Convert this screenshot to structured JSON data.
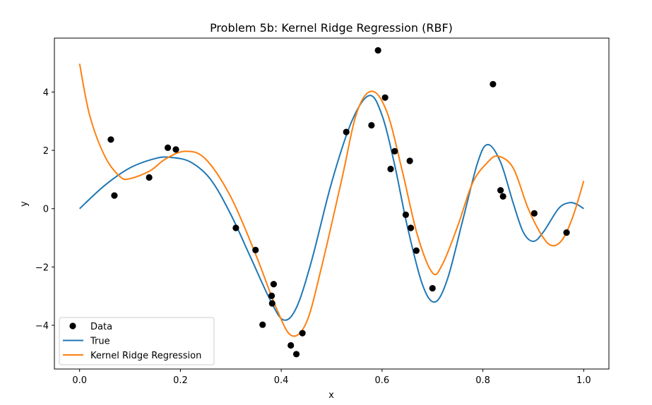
{
  "chart_data": {
    "type": "scatter",
    "title": "Problem 5b: Kernel Ridge Regression (RBF)",
    "xlabel": "x",
    "ylabel": "y",
    "xlim": [
      -0.05,
      1.05
    ],
    "ylim": [
      -5.5,
      5.85
    ],
    "xticks": [
      0.0,
      0.2,
      0.4,
      0.6,
      0.8,
      1.0
    ],
    "xtick_labels": [
      "0.0",
      "0.2",
      "0.4",
      "0.6",
      "0.8",
      "1.0"
    ],
    "yticks": [
      -4,
      -2,
      0,
      2,
      4
    ],
    "ytick_labels": [
      "−4",
      "−2",
      "0",
      "2",
      "4"
    ],
    "grid": false,
    "legend_position": "lower-left",
    "series": [
      {
        "name": "Data",
        "kind": "scatter",
        "color": "#000000",
        "points": [
          [
            0.062,
            2.37
          ],
          [
            0.069,
            0.45
          ],
          [
            0.138,
            1.07
          ],
          [
            0.175,
            2.09
          ],
          [
            0.191,
            2.03
          ],
          [
            0.31,
            -0.66
          ],
          [
            0.349,
            -1.42
          ],
          [
            0.363,
            -3.98
          ],
          [
            0.381,
            -2.99
          ],
          [
            0.382,
            -3.25
          ],
          [
            0.385,
            -2.59
          ],
          [
            0.419,
            -4.69
          ],
          [
            0.43,
            -4.99
          ],
          [
            0.442,
            -4.27
          ],
          [
            0.529,
            2.63
          ],
          [
            0.579,
            2.86
          ],
          [
            0.592,
            5.43
          ],
          [
            0.606,
            3.81
          ],
          [
            0.617,
            1.36
          ],
          [
            0.625,
            1.97
          ],
          [
            0.647,
            -0.21
          ],
          [
            0.655,
            1.64
          ],
          [
            0.657,
            -0.66
          ],
          [
            0.668,
            -1.44
          ],
          [
            0.7,
            -2.73
          ],
          [
            0.82,
            4.27
          ],
          [
            0.835,
            0.63
          ],
          [
            0.84,
            0.42
          ],
          [
            0.902,
            -0.16
          ],
          [
            0.966,
            -0.82
          ]
        ]
      },
      {
        "name": "True",
        "kind": "line",
        "color": "#1f77b4",
        "points": [
          [
            0.0,
            0.0
          ],
          [
            0.05,
            0.8
          ],
          [
            0.1,
            1.4
          ],
          [
            0.15,
            1.72
          ],
          [
            0.18,
            1.76
          ],
          [
            0.22,
            1.6
          ],
          [
            0.26,
            1.0
          ],
          [
            0.3,
            -0.2
          ],
          [
            0.34,
            -1.7
          ],
          [
            0.38,
            -3.2
          ],
          [
            0.405,
            -3.82
          ],
          [
            0.43,
            -3.4
          ],
          [
            0.46,
            -1.8
          ],
          [
            0.5,
            0.9
          ],
          [
            0.54,
            3.0
          ],
          [
            0.575,
            3.88
          ],
          [
            0.6,
            3.2
          ],
          [
            0.625,
            1.5
          ],
          [
            0.65,
            -0.6
          ],
          [
            0.68,
            -2.6
          ],
          [
            0.705,
            -3.2
          ],
          [
            0.73,
            -2.4
          ],
          [
            0.76,
            -0.4
          ],
          [
            0.79,
            1.6
          ],
          [
            0.81,
            2.2
          ],
          [
            0.835,
            1.6
          ],
          [
            0.86,
            0.2
          ],
          [
            0.88,
            -0.8
          ],
          [
            0.9,
            -1.12
          ],
          [
            0.92,
            -0.8
          ],
          [
            0.95,
            0.0
          ],
          [
            0.97,
            0.2
          ],
          [
            0.985,
            0.16
          ],
          [
            1.0,
            0.0
          ]
        ]
      },
      {
        "name": "Kernel Ridge Regression",
        "kind": "line",
        "color": "#ff7f0e",
        "points": [
          [
            0.0,
            4.97
          ],
          [
            0.02,
            3.2
          ],
          [
            0.05,
            1.8
          ],
          [
            0.08,
            1.1
          ],
          [
            0.1,
            1.03
          ],
          [
            0.14,
            1.3
          ],
          [
            0.17,
            1.7
          ],
          [
            0.21,
            1.97
          ],
          [
            0.25,
            1.7
          ],
          [
            0.3,
            0.4
          ],
          [
            0.35,
            -1.6
          ],
          [
            0.39,
            -3.4
          ],
          [
            0.42,
            -4.35
          ],
          [
            0.45,
            -3.9
          ],
          [
            0.48,
            -2.0
          ],
          [
            0.52,
            1.0
          ],
          [
            0.55,
            3.3
          ],
          [
            0.58,
            4.03
          ],
          [
            0.61,
            3.3
          ],
          [
            0.64,
            1.3
          ],
          [
            0.67,
            -0.9
          ],
          [
            0.7,
            -2.2
          ],
          [
            0.72,
            -1.9
          ],
          [
            0.75,
            -0.6
          ],
          [
            0.78,
            0.9
          ],
          [
            0.81,
            1.6
          ],
          [
            0.83,
            1.8
          ],
          [
            0.86,
            1.4
          ],
          [
            0.89,
            0.0
          ],
          [
            0.92,
            -1.0
          ],
          [
            0.94,
            -1.27
          ],
          [
            0.96,
            -1.0
          ],
          [
            0.98,
            -0.2
          ],
          [
            1.0,
            0.95
          ]
        ]
      }
    ]
  }
}
